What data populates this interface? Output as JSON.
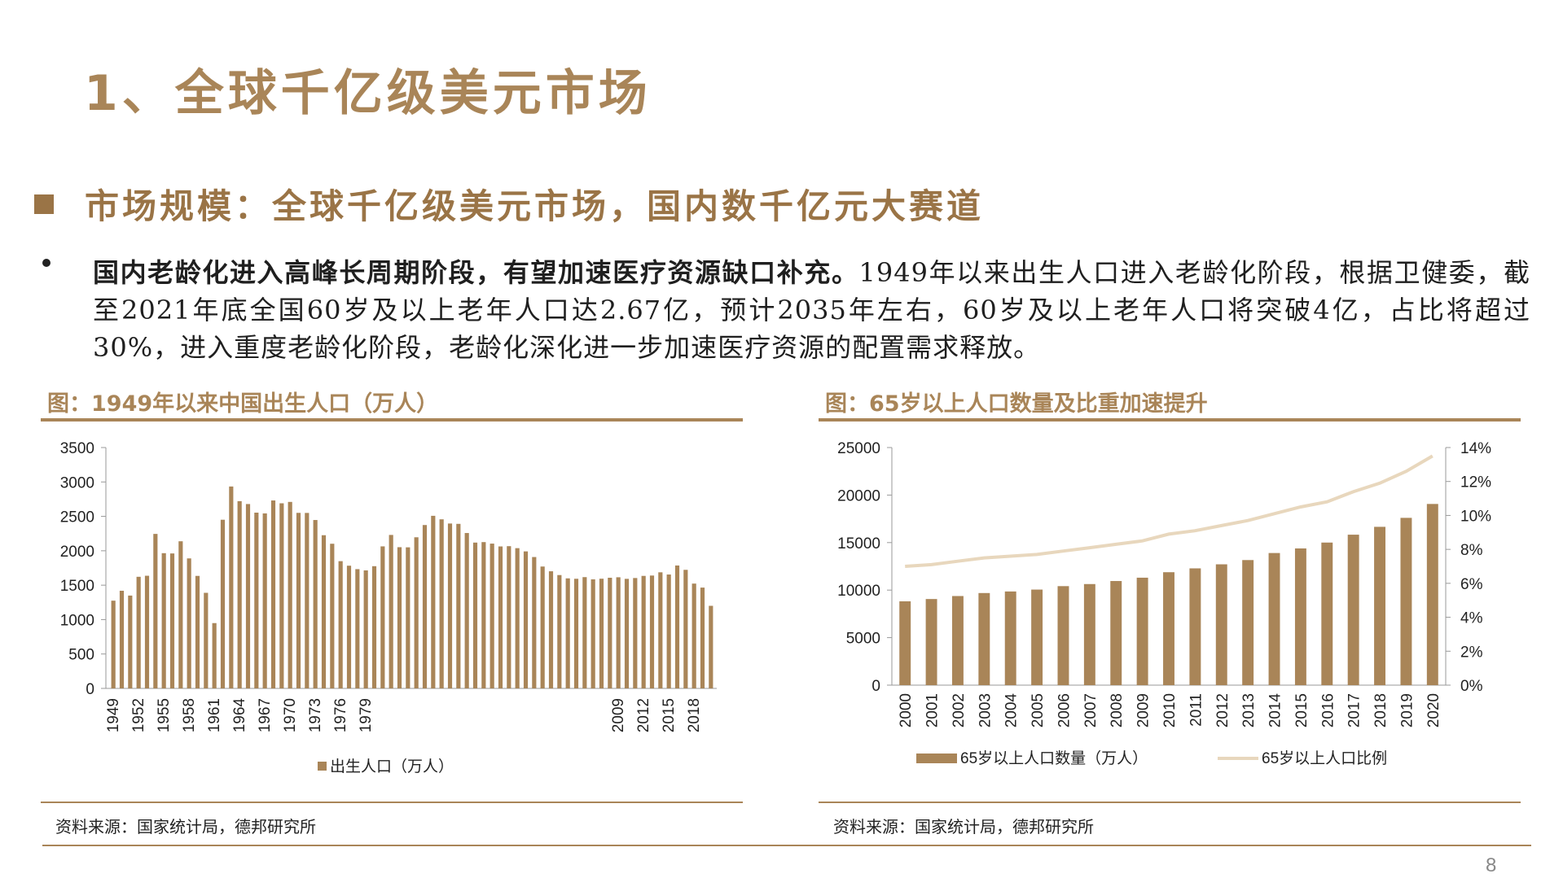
{
  "slide_title": "1、全球千亿级美元市场",
  "section_heading": "市场规模：全球千亿级美元市场，国内数千亿元大赛道",
  "bullet": {
    "bold_text": "国内老龄化进入高峰长周期阶段，有望加速医疗资源缺口补充。",
    "text": "1949年以来出生人口进入老龄化阶段，根据卫健委，截至2021年底全国60岁及以上老年人口达2.67亿，预计2035年左右，60岁及以上老年人口将突破4亿，占比将超过30%，进入重度老龄化阶段，老龄化深化进一步加速医疗资源的配置需求释放。"
  },
  "colors": {
    "accent": "#a98558",
    "bar": "#a98558",
    "line": "#e8d7bd"
  },
  "left_chart": {
    "title": "图：1949年以来中国出生人口（万人）",
    "source": "资料来源：国家统计局，德邦研究所"
  },
  "right_chart": {
    "title": "图：65岁以上人口数量及比重加速提升",
    "source": "资料来源：国家统计局，德邦研究所"
  },
  "page_number": "8",
  "chart_data": [
    {
      "type": "bar",
      "x_tick_labels": [
        "1949",
        "1952",
        "1955",
        "1958",
        "1961",
        "1964",
        "1967",
        "1970",
        "1973",
        "1976",
        "1979",
        "2009",
        "2012",
        "2015",
        "2018"
      ],
      "y_ticks": [
        "0",
        "500",
        "1000",
        "1500",
        "2000",
        "2500",
        "3000",
        "3500"
      ],
      "ylim": [
        0,
        3500
      ],
      "series": [
        {
          "name": "出生人口（万人）",
          "x": [
            1949,
            1950,
            1951,
            1952,
            1953,
            1954,
            1955,
            1956,
            1957,
            1958,
            1959,
            1960,
            1961,
            1962,
            1963,
            1964,
            1965,
            1966,
            1967,
            1968,
            1969,
            1970,
            1971,
            1972,
            1973,
            1974,
            1975,
            1976,
            1977,
            1978,
            1979,
            1980,
            1981,
            1982,
            1983,
            1984,
            1985,
            1986,
            1987,
            1988,
            1989,
            1990,
            1991,
            1992,
            1993,
            1994,
            1995,
            1996,
            1997,
            1998,
            1999,
            2000,
            2001,
            2002,
            2003,
            2004,
            2005,
            2006,
            2007,
            2008,
            2009,
            2010,
            2011,
            2012,
            2013,
            2014,
            2015,
            2016,
            2017,
            2018,
            2019,
            2020
          ],
          "values": [
            1275,
            1419,
            1349,
            1622,
            1637,
            2245,
            1965,
            1961,
            2138,
            1889,
            1635,
            1389,
            949,
            2451,
            2934,
            2721,
            2679,
            2554,
            2543,
            2731,
            2690,
            2710,
            2551,
            2550,
            2447,
            2226,
            2102,
            1849,
            1783,
            1733,
            1715,
            1776,
            2064,
            2230,
            2052,
            2050,
            2196,
            2374,
            2508,
            2457,
            2396,
            2391,
            2258,
            2119,
            2126,
            2104,
            2063,
            2067,
            2038,
            1991,
            1909,
            1771,
            1702,
            1647,
            1599,
            1593,
            1617,
            1585,
            1594,
            1608,
            1615,
            1592,
            1604,
            1635,
            1640,
            1687,
            1655,
            1786,
            1723,
            1523,
            1465,
            1200
          ]
        }
      ],
      "legend_position": "bottom",
      "grid": false
    },
    {
      "type": "bar",
      "categories": [
        "2000",
        "2001",
        "2002",
        "2003",
        "2004",
        "2005",
        "2006",
        "2007",
        "2008",
        "2009",
        "2010",
        "2011",
        "2012",
        "2013",
        "2014",
        "2015",
        "2016",
        "2017",
        "2018",
        "2019",
        "2020"
      ],
      "y_ticks": [
        "0",
        "5000",
        "10000",
        "15000",
        "20000",
        "25000"
      ],
      "y2_ticks": [
        "0%",
        "2%",
        "4%",
        "6%",
        "8%",
        "10%",
        "12%",
        "14%"
      ],
      "ylim": [
        0,
        25000
      ],
      "y2lim": [
        0,
        0.14
      ],
      "series": [
        {
          "name": "65岁以上人口数量（万人）",
          "type": "bar",
          "values": [
            8821,
            9062,
            9377,
            9692,
            9857,
            10055,
            10419,
            10636,
            10956,
            11307,
            11883,
            12288,
            12714,
            13161,
            13902,
            14386,
            15003,
            15831,
            16658,
            17603,
            19064
          ]
        },
        {
          "name": "65岁以上人口比例",
          "type": "line",
          "values": [
            0.07,
            0.071,
            0.073,
            0.075,
            0.076,
            0.077,
            0.079,
            0.081,
            0.083,
            0.085,
            0.089,
            0.091,
            0.094,
            0.097,
            0.101,
            0.105,
            0.108,
            0.114,
            0.119,
            0.126,
            0.135
          ]
        }
      ],
      "legend_position": "bottom",
      "grid": false
    }
  ]
}
